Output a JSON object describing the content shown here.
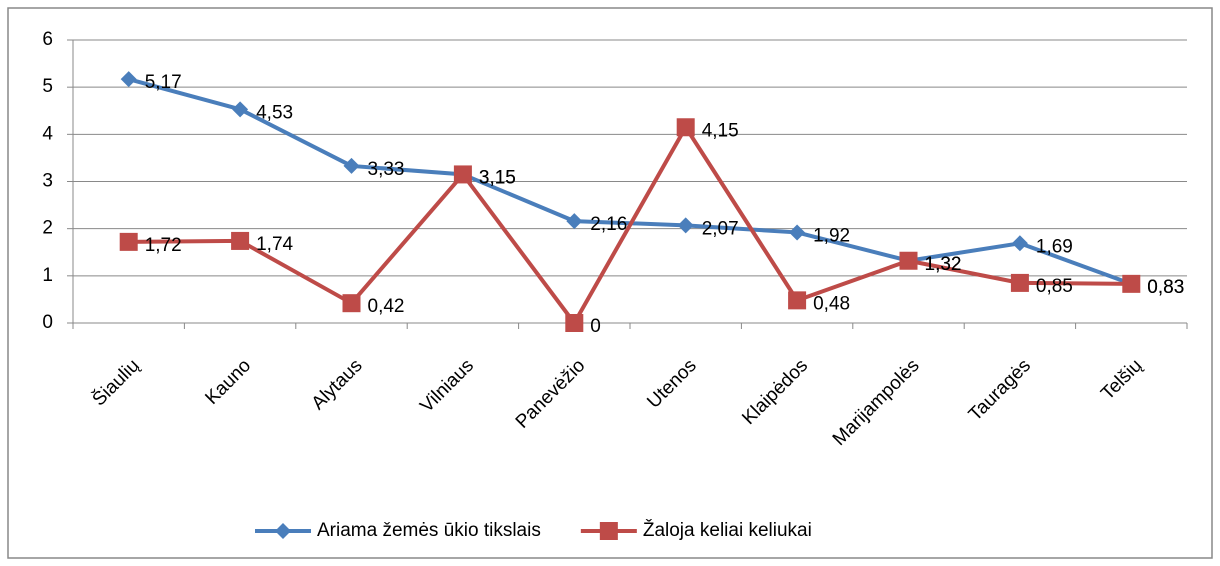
{
  "chart_data": {
    "type": "line",
    "categories": [
      "Šiaulių",
      "Kauno",
      "Alytaus",
      "Vilniaus",
      "Panevėžio",
      "Utenos",
      "Klaipėdos",
      "Marijampolės",
      "Tauragės",
      "Telšių"
    ],
    "series": [
      {
        "name": "Ariama žemės ūkio tikslais",
        "color": "#4a7ebb",
        "marker": "diamond",
        "values": [
          5.17,
          4.53,
          3.33,
          3.15,
          2.16,
          2.07,
          1.92,
          1.32,
          1.69,
          0.83
        ],
        "value_labels": [
          "5,17",
          "4,53",
          "3,33",
          "3,15",
          "2,16",
          "2,07",
          "1,92",
          "1,32",
          "1,69",
          "0,83"
        ]
      },
      {
        "name": "Žaloja keliai keliukai",
        "color": "#be4b48",
        "marker": "square",
        "values": [
          1.72,
          1.74,
          0.42,
          3.15,
          0,
          4.15,
          0.48,
          1.32,
          0.85,
          0.83
        ],
        "value_labels": [
          "1,72",
          "1,74",
          "0,42",
          "3,15",
          "0",
          "4,15",
          "0,48",
          "1,32",
          "0,85",
          "0,83"
        ]
      }
    ],
    "ylim": [
      0,
      6
    ],
    "yticks": [
      0,
      1,
      2,
      3,
      4,
      5,
      6
    ],
    "grid": true,
    "legend": "bottom"
  }
}
